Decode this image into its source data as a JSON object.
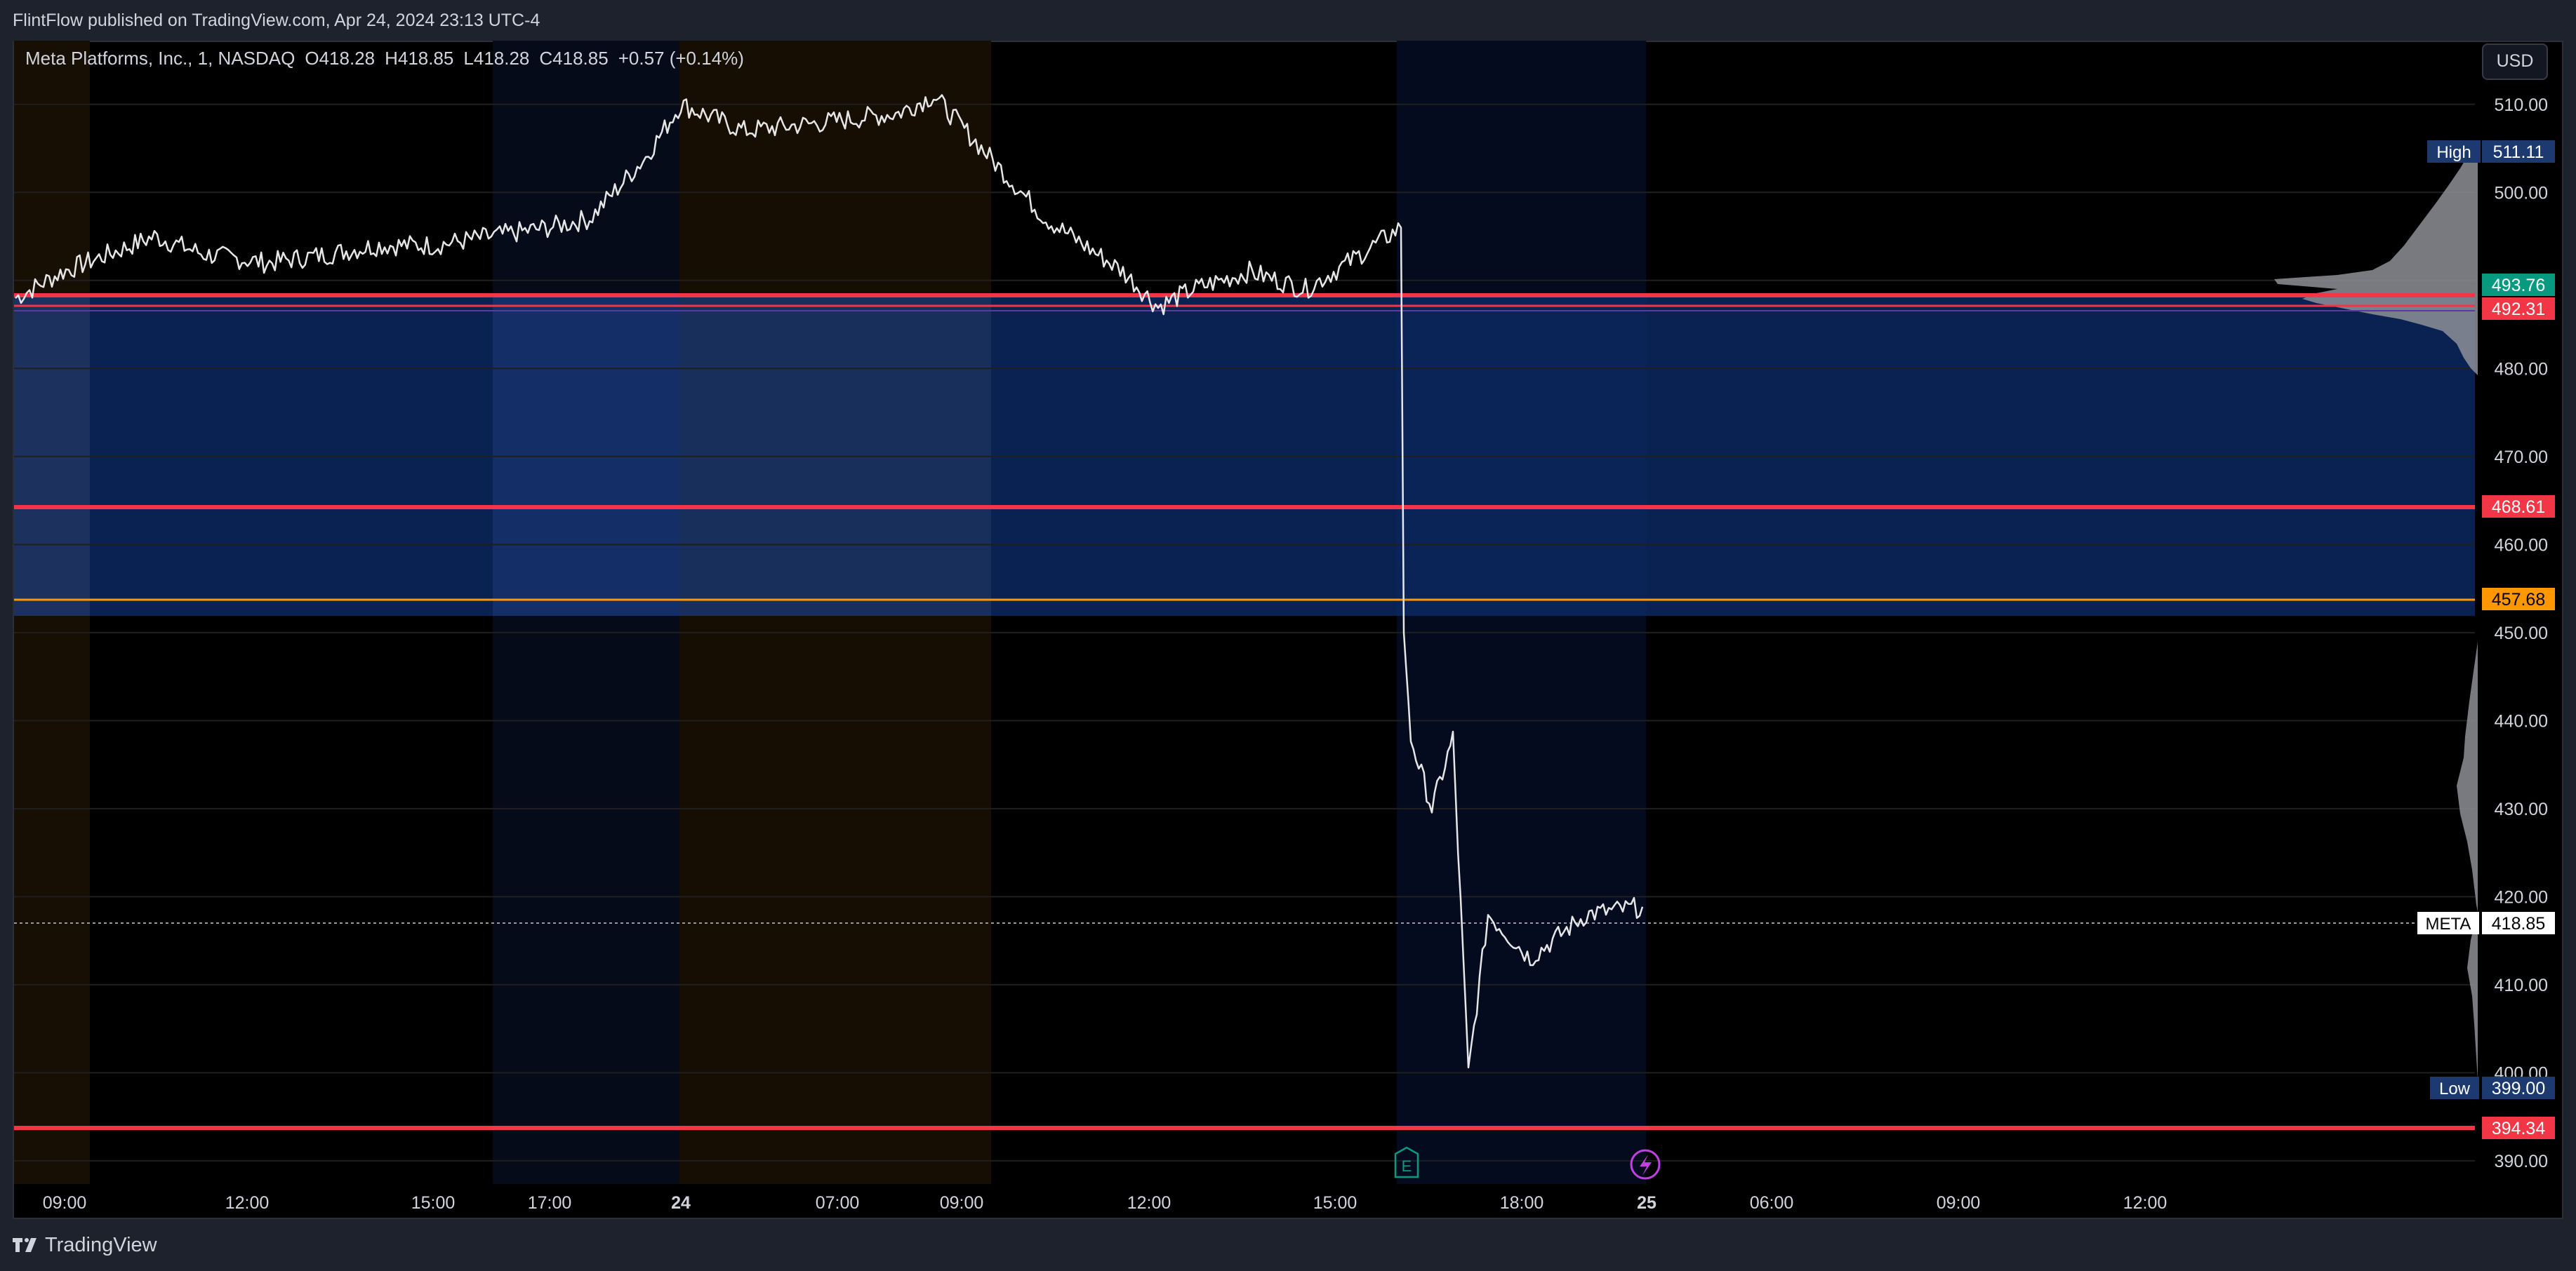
{
  "header": {
    "published_text": "FlintFlow published on TradingView.com, Apr 24, 2024 23:13 UTC-4"
  },
  "legend": {
    "symbol": "Meta Platforms, Inc., 1, NASDAQ",
    "open": "O418.28",
    "high": "H418.85",
    "low": "L418.28",
    "close": "C418.85",
    "change": "+0.57 (+0.14%)"
  },
  "currency_button": "USD",
  "brand": {
    "name": "TradingView",
    "icon": "tradingview-logo-icon"
  },
  "price_axis": {
    "ticks": [
      "510.00",
      "500.00",
      "490.00",
      "480.00",
      "470.00",
      "460.00",
      "450.00",
      "440.00",
      "430.00",
      "420.00",
      "410.00",
      "400.00",
      "390.00"
    ]
  },
  "price_tags": {
    "high_label": "High",
    "high_value": "511.11",
    "green_value": "493.76",
    "red1_value": "492.31",
    "red2_value": "468.61",
    "orange_value": "457.68",
    "ticker_label": "META",
    "ticker_value": "418.85",
    "low_label": "Low",
    "low_value": "399.00",
    "red3_value": "394.34"
  },
  "time_axis": {
    "labels": [
      "09:00",
      "12:00",
      "15:00",
      "17:00",
      "24",
      "07:00",
      "09:00",
      "12:00",
      "15:00",
      "18:00",
      "25",
      "06:00",
      "09:00",
      "12:00"
    ]
  },
  "event_markers": {
    "earnings_label": "E",
    "earnings_icon": "earnings-icon",
    "dividend_icon": "lightning-icon"
  },
  "colors": {
    "background": "#000000",
    "frame": "#1e222d",
    "price_line": "#e6e6e6",
    "red_level": "#f23645",
    "green_tag": "#089981",
    "orange_level": "#ff9800",
    "blue_zone": "#0d2a66",
    "axis_tag_blue": "#1c3a70"
  },
  "chart_data": {
    "type": "line",
    "symbol": "META",
    "x": [
      "09:00",
      "09:30",
      "10:00",
      "10:30",
      "11:00",
      "11:30",
      "12:00",
      "13:00",
      "14:00",
      "15:00",
      "16:00",
      "17:00",
      "24",
      "06:00",
      "07:00",
      "08:00",
      "09:00",
      "09:30",
      "10:00",
      "11:00",
      "11:30",
      "12:00",
      "13:00",
      "14:00",
      "15:00",
      "16:00",
      "16:05",
      "16:15",
      "16:30",
      "17:00",
      "17:15",
      "17:30",
      "18:00",
      "19:00",
      "20:00"
    ],
    "values": [
      488,
      491,
      495,
      493,
      492,
      493,
      494,
      494,
      495,
      496,
      497,
      504,
      510,
      507,
      508,
      509,
      511,
      504,
      497,
      491,
      487,
      489,
      491,
      489,
      492,
      496,
      450,
      438,
      430,
      438,
      400,
      418,
      413,
      418,
      418.85
    ],
    "ylim": [
      388,
      515
    ],
    "levels": [
      {
        "value": 493.76,
        "color": "green"
      },
      {
        "value": 492.31,
        "color": "red"
      },
      {
        "value": 468.61,
        "color": "red"
      },
      {
        "value": 457.68,
        "color": "orange"
      },
      {
        "value": 394.34,
        "color": "red"
      }
    ],
    "high": 511.11,
    "low": 399.0,
    "last": 418.85
  }
}
